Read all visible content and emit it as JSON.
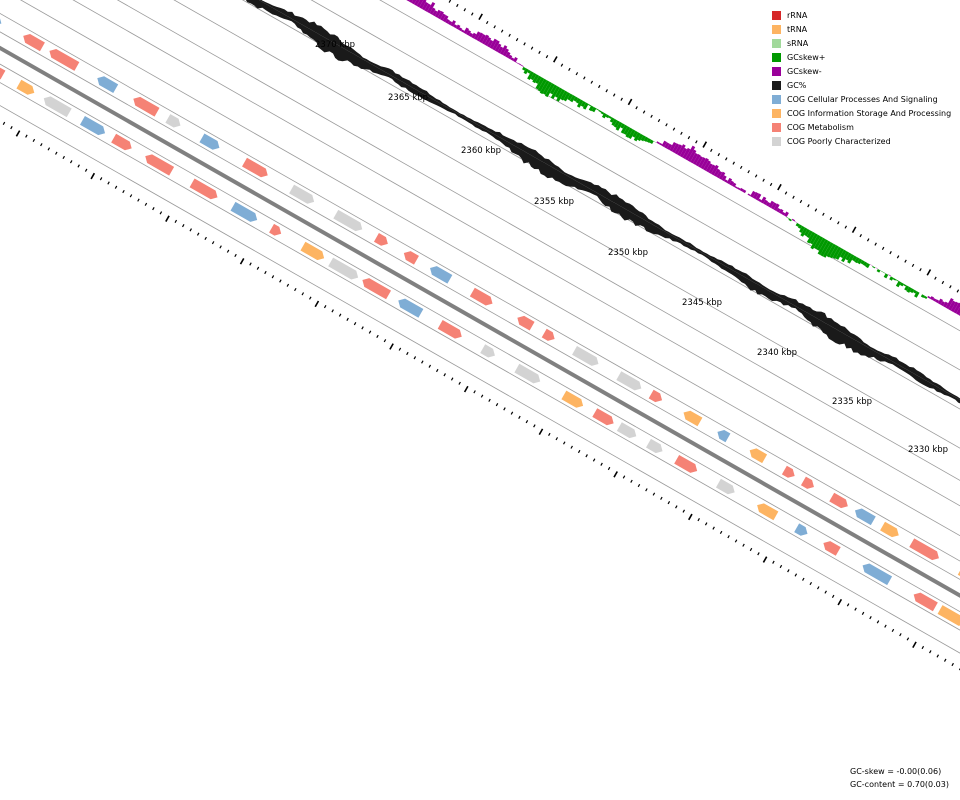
{
  "legend": [
    {
      "label": "rRNA",
      "color": "#d62728"
    },
    {
      "label": "tRNA",
      "color": "#fdb462"
    },
    {
      "label": "sRNA",
      "color": "#a1d99b"
    },
    {
      "label": "GCskew+",
      "color": "#009900"
    },
    {
      "label": "GCskew-",
      "color": "#990099"
    },
    {
      "label": "GC%",
      "color": "#1a1a1a"
    },
    {
      "label": "COG Cellular Processes And Signaling",
      "color": "#7fadd5"
    },
    {
      "label": "COG Information Storage And Processing",
      "color": "#fdb462"
    },
    {
      "label": "COG Metabolism",
      "color": "#f58275"
    },
    {
      "label": "COG Poorly Characterized",
      "color": "#d3d3d3"
    }
  ],
  "ticks": [
    "2370 kbp",
    "2365 kbp",
    "2360 kbp",
    "2355 kbp",
    "2350 kbp",
    "2345 kbp",
    "2340 kbp",
    "2335 kbp",
    "2330 kbp"
  ],
  "stats": {
    "gc_skew": "GC-skew = -0.00(0.06)",
    "gc_content": "GC-content = 0.70(0.03)"
  },
  "colors": {
    "skew_pos": "#009900",
    "skew_neg": "#990099",
    "gc": "#1a1a1a",
    "axis": "#808080"
  }
}
